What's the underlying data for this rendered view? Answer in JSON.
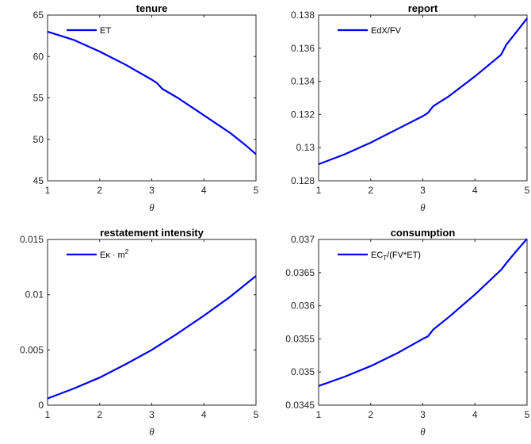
{
  "colors": {
    "series": "#0000ff",
    "axis": "#262626",
    "background": "#ffffff"
  },
  "chart_data": [
    {
      "type": "line",
      "title": "tenure",
      "xlabel": "θ",
      "xlim": [
        1,
        5
      ],
      "ylim": [
        45,
        65
      ],
      "xticks": [
        "1",
        "2",
        "3",
        "4",
        "5"
      ],
      "yticks": [
        "45",
        "50",
        "55",
        "60",
        "65"
      ],
      "legend": {
        "label": "ET",
        "position": "top-left"
      },
      "series": [
        {
          "x": [
            1,
            1.5,
            2,
            2.5,
            3,
            3.1,
            3.2,
            3.5,
            4,
            4.5,
            4.6,
            4.8,
            5
          ],
          "y": [
            63.0,
            62.0,
            60.6,
            59.0,
            57.2,
            56.8,
            56.1,
            55.0,
            52.9,
            50.8,
            50.3,
            49.3,
            48.2
          ]
        }
      ]
    },
    {
      "type": "line",
      "title": "report",
      "xlabel": "θ",
      "xlim": [
        1,
        5
      ],
      "ylim": [
        0.128,
        0.138
      ],
      "xticks": [
        "1",
        "2",
        "3",
        "4",
        "5"
      ],
      "yticks": [
        "0.128",
        "0.13",
        "0.132",
        "0.134",
        "0.136",
        "0.138"
      ],
      "legend": {
        "label": "EdX/FV",
        "position": "top-left"
      },
      "series": [
        {
          "x": [
            1,
            1.5,
            2,
            2.5,
            3,
            3.1,
            3.2,
            3.5,
            4,
            4.5,
            4.6,
            4.8,
            5
          ],
          "y": [
            0.129,
            0.1296,
            0.1303,
            0.1311,
            0.1319,
            0.1321,
            0.1325,
            0.1331,
            0.1343,
            0.1356,
            0.1362,
            0.137,
            0.1378
          ]
        }
      ]
    },
    {
      "type": "line",
      "title": "restatement intensity",
      "xlabel": "θ",
      "xlim": [
        1,
        5
      ],
      "ylim": [
        0,
        0.015
      ],
      "xticks": [
        "1",
        "2",
        "3",
        "4",
        "5"
      ],
      "yticks": [
        "0",
        "0.005",
        "0.01",
        "0.015"
      ],
      "legend": {
        "label": "Eκ · m²",
        "position": "top-left"
      },
      "series": [
        {
          "x": [
            1,
            1.5,
            2,
            2.5,
            3,
            3.5,
            4,
            4.5,
            5
          ],
          "y": [
            0.0006,
            0.0015,
            0.0025,
            0.0037,
            0.005,
            0.0065,
            0.0081,
            0.0098,
            0.0117
          ]
        }
      ]
    },
    {
      "type": "line",
      "title": "consumption",
      "xlabel": "θ",
      "xlim": [
        1,
        5
      ],
      "ylim": [
        0.0345,
        0.037
      ],
      "xticks": [
        "1",
        "2",
        "3",
        "4",
        "5"
      ],
      "yticks": [
        "0.0345",
        "0.035",
        "0.0355",
        "0.036",
        "0.0365",
        "0.037"
      ],
      "legend": {
        "label": "EC_T/(FV*ET)",
        "position": "top-left"
      },
      "series": [
        {
          "x": [
            1,
            1.5,
            2,
            2.5,
            3,
            3.1,
            3.2,
            3.5,
            4,
            4.5,
            4.6,
            4.8,
            5
          ],
          "y": [
            0.03479,
            0.03493,
            0.03509,
            0.03528,
            0.0355,
            0.03554,
            0.03564,
            0.03583,
            0.03617,
            0.03654,
            0.03664,
            0.03683,
            0.03701
          ]
        }
      ]
    }
  ]
}
